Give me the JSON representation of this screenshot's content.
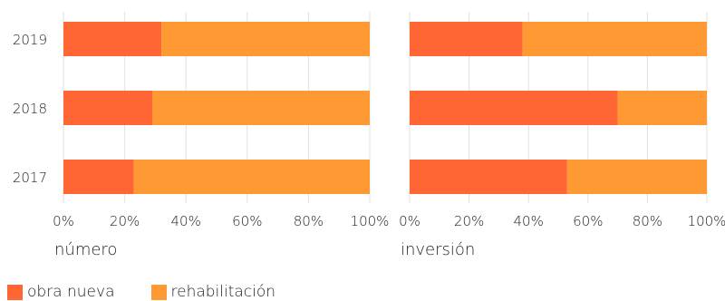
{
  "chart_data": [
    {
      "type": "bar",
      "orientation": "horizontal",
      "stacked": true,
      "xlabel": "número",
      "categories": [
        "2019",
        "2018",
        "2017"
      ],
      "series": [
        {
          "name": "obra nueva",
          "values": [
            32,
            29,
            23
          ]
        },
        {
          "name": "rehabilitación",
          "values": [
            68,
            71,
            77
          ]
        }
      ],
      "xlim": [
        0,
        100
      ],
      "ticks": [
        "0%",
        "20%",
        "40%",
        "60%",
        "80%",
        "100%"
      ],
      "grid": true
    },
    {
      "type": "bar",
      "orientation": "horizontal",
      "stacked": true,
      "xlabel": "inversión",
      "categories": [
        "2019",
        "2018",
        "2017"
      ],
      "series": [
        {
          "name": "obra nueva",
          "values": [
            38,
            70,
            53
          ]
        },
        {
          "name": "rehabilitación",
          "values": [
            62,
            30,
            47
          ]
        }
      ],
      "xlim": [
        0,
        100
      ],
      "ticks": [
        "0%",
        "20%",
        "40%",
        "60%",
        "80%",
        "100%"
      ],
      "grid": true
    }
  ],
  "legend": {
    "position": "bottom-left",
    "items": [
      {
        "label": "obra nueva",
        "color": "#FF6633"
      },
      {
        "label": "rehabilitación",
        "color": "#FF9933"
      }
    ]
  },
  "colors": {
    "obra_nueva": "#FF6633",
    "rehabilitacion": "#FF9933",
    "grid": "#E0E0E0"
  }
}
